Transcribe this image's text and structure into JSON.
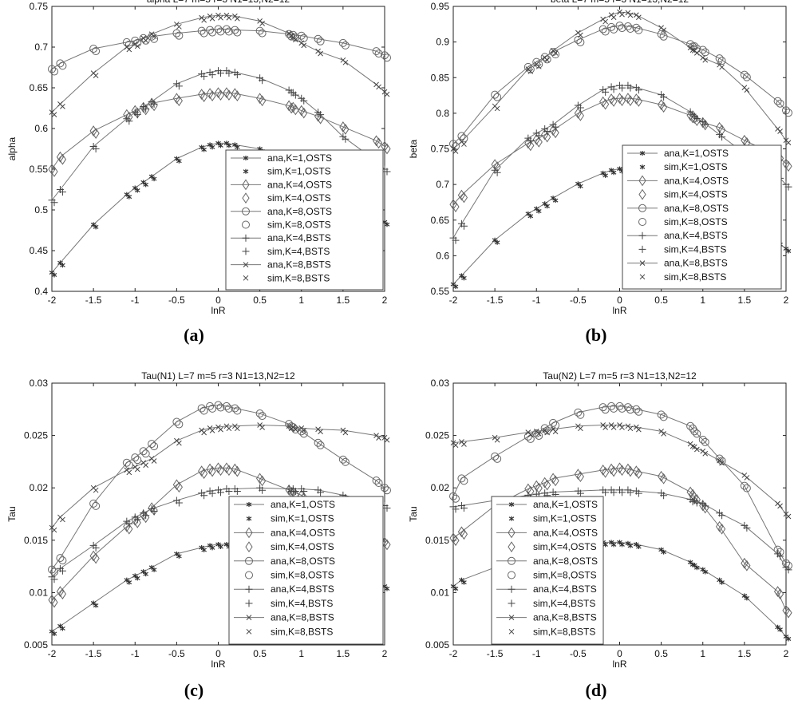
{
  "legend_entries": [
    "ana,K=1,OSTS",
    "sim,K=1,OSTS",
    "ana,K=4,OSTS",
    "sim,K=4,OSTS",
    "ana,K=8,OSTS",
    "sim,K=8,OSTS",
    "ana,K=4,BSTS",
    "sim,K=4,BSTS",
    "ana,K=8,BSTS",
    "sim,K=8,BSTS"
  ],
  "panel_labels": [
    "(a)",
    "(b)",
    "(c)",
    "(d)"
  ],
  "chart_data": [
    {
      "type": "line",
      "title": "alpha   L=7 m=5 r=3 N1=13,N2=12",
      "xlabel": "lnR",
      "ylabel": "alpha",
      "xlim": [
        -2,
        2
      ],
      "ylim": [
        0.4,
        0.75
      ],
      "xticks": [
        -2,
        -1.5,
        -1,
        -0.5,
        0,
        0.5,
        1,
        1.5,
        2
      ],
      "xtick_labels": [
        "-2",
        "-1.5",
        "-1",
        "-0.5",
        "0",
        "0.5",
        "1",
        "1.5",
        "2"
      ],
      "yticks": [
        0.4,
        0.45,
        0.5,
        0.55,
        0.6,
        0.65,
        0.7,
        0.75
      ],
      "ytick_labels": [
        "0.4",
        "0.45",
        "0.5",
        "0.55",
        "0.6",
        "0.65",
        "0.7",
        "0.75"
      ],
      "legend_position": "bottom-right",
      "x": [
        -2,
        -1.9,
        -1.5,
        -1.1,
        -1,
        -0.9,
        -0.8,
        -0.5,
        -0.2,
        -0.1,
        0,
        0.1,
        0.2,
        0.5,
        0.85,
        0.9,
        1,
        1.2,
        1.5,
        1.9,
        2
      ],
      "series": [
        {
          "name": "K=1,OSTS",
          "marker": "tri",
          "values": [
            0.423,
            0.435,
            0.482,
            0.519,
            0.527,
            0.534,
            0.541,
            0.563,
            0.577,
            0.58,
            0.582,
            0.582,
            0.58,
            0.575,
            0.565,
            0.562,
            0.555,
            0.54,
            0.52,
            0.493,
            0.485
          ]
        },
        {
          "name": "K=4,OSTS",
          "marker": "diamond",
          "values": [
            0.55,
            0.565,
            0.597,
            0.617,
            0.622,
            0.626,
            0.631,
            0.637,
            0.642,
            0.643,
            0.644,
            0.644,
            0.643,
            0.637,
            0.628,
            0.626,
            0.622,
            0.615,
            0.602,
            0.585,
            0.578
          ]
        },
        {
          "name": "K=8,OSTS",
          "marker": "circle",
          "values": [
            0.673,
            0.68,
            0.698,
            0.706,
            0.708,
            0.711,
            0.713,
            0.717,
            0.72,
            0.721,
            0.722,
            0.722,
            0.721,
            0.72,
            0.716,
            0.715,
            0.714,
            0.71,
            0.705,
            0.695,
            0.69
          ]
        },
        {
          "name": "K=4,BSTS",
          "marker": "plus",
          "values": [
            0.512,
            0.525,
            0.578,
            0.612,
            0.62,
            0.627,
            0.633,
            0.655,
            0.667,
            0.669,
            0.671,
            0.671,
            0.669,
            0.662,
            0.647,
            0.644,
            0.637,
            0.62,
            0.59,
            0.56,
            0.55
          ]
        },
        {
          "name": "K=8,BSTS",
          "marker": "x",
          "values": [
            0.62,
            0.63,
            0.668,
            0.7,
            0.704,
            0.711,
            0.716,
            0.728,
            0.736,
            0.738,
            0.739,
            0.739,
            0.738,
            0.732,
            0.717,
            0.712,
            0.705,
            0.695,
            0.684,
            0.654,
            0.645
          ]
        }
      ]
    },
    {
      "type": "line",
      "title": "beta   L=7 m=5 r=3 N1=13,N2=12",
      "xlabel": "lnR",
      "ylabel": "beta",
      "xlim": [
        -2,
        2
      ],
      "ylim": [
        0.55,
        0.95
      ],
      "xticks": [
        -2,
        -1.5,
        -1,
        -0.5,
        0,
        0.5,
        1,
        1.5,
        2
      ],
      "xtick_labels": [
        "-2",
        "-1.5",
        "-1",
        "-0.5",
        "0",
        "0.5",
        "1",
        "1.5",
        "2"
      ],
      "yticks": [
        0.55,
        0.6,
        0.65,
        0.7,
        0.75,
        0.8,
        0.85,
        0.9,
        0.95
      ],
      "ytick_labels": [
        "0.55",
        "0.6",
        "0.65",
        "0.7",
        "0.75",
        "0.8",
        "0.85",
        "0.9",
        "0.95"
      ],
      "legend_position": "bottom-right",
      "x": [
        -2,
        -1.9,
        -1.5,
        -1.1,
        -1,
        -0.9,
        -0.8,
        -0.5,
        -0.2,
        -0.1,
        0,
        0.1,
        0.2,
        0.5,
        0.85,
        0.9,
        1,
        1.2,
        1.5,
        1.9,
        2
      ],
      "series": [
        {
          "name": "K=1,OSTS",
          "marker": "tri",
          "values": [
            0.56,
            0.572,
            0.622,
            0.659,
            0.666,
            0.673,
            0.681,
            0.701,
            0.716,
            0.72,
            0.722,
            0.722,
            0.72,
            0.71,
            0.695,
            0.691,
            0.683,
            0.669,
            0.648,
            0.619,
            0.61
          ]
        },
        {
          "name": "K=4,OSTS",
          "marker": "diamond",
          "values": [
            0.672,
            0.685,
            0.728,
            0.758,
            0.763,
            0.77,
            0.776,
            0.8,
            0.816,
            0.82,
            0.821,
            0.821,
            0.82,
            0.812,
            0.797,
            0.793,
            0.787,
            0.78,
            0.762,
            0.74,
            0.729
          ]
        },
        {
          "name": "K=8,OSTS",
          "marker": "circle",
          "values": [
            0.757,
            0.768,
            0.826,
            0.865,
            0.872,
            0.879,
            0.886,
            0.903,
            0.918,
            0.921,
            0.923,
            0.922,
            0.92,
            0.911,
            0.897,
            0.894,
            0.889,
            0.877,
            0.854,
            0.817,
            0.804
          ]
        },
        {
          "name": "K=4,BSTS",
          "marker": "plus",
          "values": [
            0.625,
            0.645,
            0.72,
            0.765,
            0.772,
            0.778,
            0.784,
            0.811,
            0.833,
            0.837,
            0.839,
            0.839,
            0.836,
            0.826,
            0.802,
            0.796,
            0.788,
            0.77,
            0.744,
            0.712,
            0.7
          ]
        },
        {
          "name": "K=8,BSTS",
          "marker": "x",
          "values": [
            0.75,
            0.76,
            0.81,
            0.862,
            0.869,
            0.878,
            0.888,
            0.913,
            0.932,
            0.938,
            0.942,
            0.941,
            0.938,
            0.92,
            0.892,
            0.888,
            0.878,
            0.868,
            0.836,
            0.778,
            0.762
          ]
        }
      ]
    },
    {
      "type": "line",
      "title": "Tau(N1)  L=7 m=5 r=3 N1=13,N2=12",
      "xlabel": "lnR",
      "ylabel": "Tau",
      "xlim": [
        -2,
        2
      ],
      "ylim": [
        0.005,
        0.03
      ],
      "xticks": [
        -2,
        -1.5,
        -1,
        -0.5,
        0,
        0.5,
        1,
        1.5,
        2
      ],
      "xtick_labels": [
        "-2",
        "-1.5",
        "-1",
        "-0.5",
        "0",
        "0.5",
        "1",
        "1.5",
        "2"
      ],
      "yticks": [
        0.005,
        0.01,
        0.015,
        0.02,
        0.025,
        0.03
      ],
      "ytick_labels": [
        "0.005",
        "0.01",
        "0.015",
        "0.02",
        "0.025",
        "0.03"
      ],
      "legend_position": "bottom-right",
      "x": [
        -2,
        -1.9,
        -1.5,
        -1.1,
        -1,
        -0.9,
        -0.8,
        -0.5,
        -0.2,
        -0.1,
        0,
        0.1,
        0.2,
        0.5,
        0.85,
        0.9,
        1,
        1.2,
        1.5,
        1.9,
        2
      ],
      "series": [
        {
          "name": "K=1,OSTS",
          "marker": "tri",
          "values": [
            0.0063,
            0.0068,
            0.009,
            0.0112,
            0.0116,
            0.012,
            0.0124,
            0.0137,
            0.0143,
            0.0145,
            0.0146,
            0.0146,
            0.0145,
            0.0142,
            0.0132,
            0.013,
            0.0127,
            0.0121,
            0.0115,
            0.0108,
            0.0106
          ]
        },
        {
          "name": "K=4,OSTS",
          "marker": "diamond",
          "values": [
            0.0093,
            0.0101,
            0.0135,
            0.0163,
            0.0169,
            0.0174,
            0.0181,
            0.0203,
            0.0216,
            0.0218,
            0.0219,
            0.0219,
            0.0218,
            0.0209,
            0.0198,
            0.0196,
            0.0193,
            0.0183,
            0.0168,
            0.0155,
            0.0148
          ]
        },
        {
          "name": "K=8,OSTS",
          "marker": "circle",
          "values": [
            0.0122,
            0.0133,
            0.0185,
            0.0224,
            0.0229,
            0.0235,
            0.0242,
            0.0263,
            0.0276,
            0.0278,
            0.0279,
            0.0278,
            0.0276,
            0.0271,
            0.0261,
            0.0258,
            0.0254,
            0.0243,
            0.0227,
            0.0207,
            0.02
          ]
        },
        {
          "name": "K=4,BSTS",
          "marker": "plus",
          "values": [
            0.0115,
            0.0123,
            0.0145,
            0.0168,
            0.0172,
            0.0176,
            0.018,
            0.0188,
            0.0195,
            0.0197,
            0.0198,
            0.0199,
            0.0199,
            0.02,
            0.0199,
            0.0199,
            0.0199,
            0.0198,
            0.0193,
            0.0187,
            0.0183
          ]
        },
        {
          "name": "K=8,BSTS",
          "marker": "x",
          "values": [
            0.0162,
            0.0172,
            0.02,
            0.0217,
            0.022,
            0.0224,
            0.0228,
            0.0245,
            0.0255,
            0.0257,
            0.0258,
            0.0259,
            0.0259,
            0.026,
            0.0259,
            0.0258,
            0.0257,
            0.0256,
            0.0255,
            0.025,
            0.0248
          ]
        }
      ]
    },
    {
      "type": "line",
      "title": "Tau(N2)  L=7 m=5 r=3 N1=13,N2=12",
      "xlabel": "lnR",
      "ylabel": "Tau",
      "xlim": [
        -2,
        2
      ],
      "ylim": [
        0.005,
        0.03
      ],
      "xticks": [
        -2,
        -1.5,
        -1,
        -0.5,
        0,
        0.5,
        1,
        1.5,
        2
      ],
      "xtick_labels": [
        "-2",
        "-1.5",
        "-1",
        "-0.5",
        "0",
        "0.5",
        "1",
        "1.5",
        "2"
      ],
      "yticks": [
        0.005,
        0.01,
        0.015,
        0.02,
        0.025,
        0.03
      ],
      "ytick_labels": [
        "0.005",
        "0.01",
        "0.015",
        "0.02",
        "0.025",
        "0.03"
      ],
      "legend_position": "bottom-left",
      "x": [
        -2,
        -1.9,
        -1.5,
        -1.1,
        -1,
        -0.9,
        -0.8,
        -0.5,
        -0.2,
        -0.1,
        0,
        0.1,
        0.2,
        0.5,
        0.85,
        0.9,
        1,
        1.2,
        1.5,
        1.9,
        2
      ],
      "series": [
        {
          "name": "K=1,OSTS",
          "marker": "tri",
          "values": [
            0.0106,
            0.0112,
            0.0124,
            0.0138,
            0.014,
            0.0143,
            0.0145,
            0.0147,
            0.0148,
            0.0148,
            0.0148,
            0.0147,
            0.0146,
            0.0141,
            0.0129,
            0.0126,
            0.0122,
            0.0112,
            0.0097,
            0.0067,
            0.0058
          ]
        },
        {
          "name": "K=4,OSTS",
          "marker": "diamond",
          "values": [
            0.0152,
            0.0158,
            0.0183,
            0.0199,
            0.0202,
            0.0205,
            0.0209,
            0.0213,
            0.0217,
            0.0218,
            0.0219,
            0.0218,
            0.0216,
            0.0211,
            0.0196,
            0.0191,
            0.0183,
            0.0163,
            0.0128,
            0.0101,
            0.0083
          ]
        },
        {
          "name": "K=8,OSTS",
          "marker": "circle",
          "values": [
            0.0192,
            0.0209,
            0.023,
            0.0249,
            0.0252,
            0.0257,
            0.0262,
            0.0272,
            0.0277,
            0.0278,
            0.0278,
            0.0277,
            0.0275,
            0.027,
            0.0259,
            0.0254,
            0.0246,
            0.0228,
            0.0202,
            0.0141,
            0.0128
          ]
        },
        {
          "name": "K=4,BSTS",
          "marker": "plus",
          "values": [
            0.0182,
            0.0183,
            0.0188,
            0.0193,
            0.0194,
            0.0195,
            0.0196,
            0.0197,
            0.0198,
            0.0198,
            0.0198,
            0.0198,
            0.0197,
            0.0195,
            0.0189,
            0.0188,
            0.0185,
            0.0176,
            0.0164,
            0.0137,
            0.0124
          ]
        },
        {
          "name": "K=8,BSTS",
          "marker": "x",
          "values": [
            0.0243,
            0.0244,
            0.0248,
            0.0253,
            0.0254,
            0.0255,
            0.0256,
            0.0259,
            0.026,
            0.026,
            0.026,
            0.0259,
            0.0258,
            0.0254,
            0.0242,
            0.0239,
            0.0235,
            0.0226,
            0.0212,
            0.0185,
            0.0175
          ]
        }
      ]
    }
  ]
}
